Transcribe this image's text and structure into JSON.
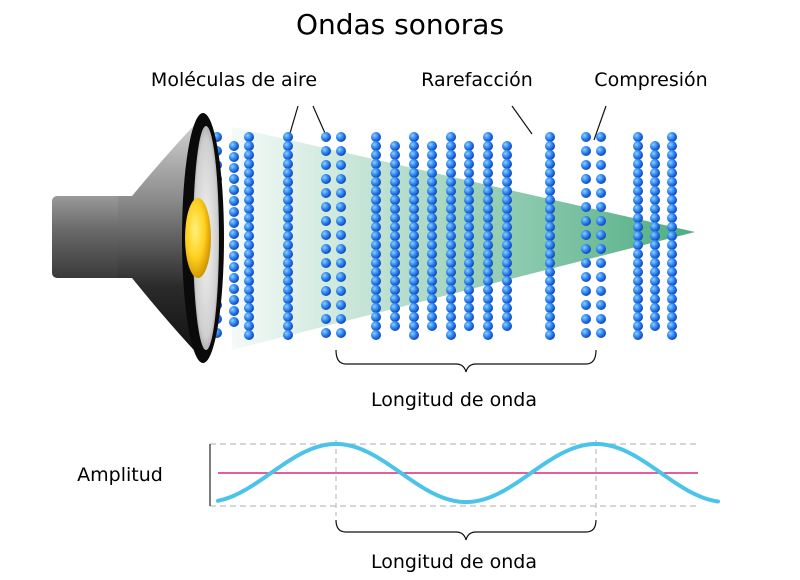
{
  "title": "Ondas sonoras",
  "labels": {
    "molecules": "Moléculas de aire",
    "rarefaction": "Rarefacción",
    "compression": "Compresión",
    "wavelength_top": "Longitud de onda",
    "amplitude": "Amplitud",
    "wavelength_bottom": "Longitud de onda"
  },
  "colors": {
    "molecule": "#1a63e8",
    "wave_fill": "#2e9e6b",
    "wave_curve": "#4cc4ea",
    "axis_line": "#d6288a",
    "guide": "#bdbdbd"
  },
  "icons": {
    "speaker": "loudspeaker-icon",
    "molecule": "molecule-dot"
  }
}
